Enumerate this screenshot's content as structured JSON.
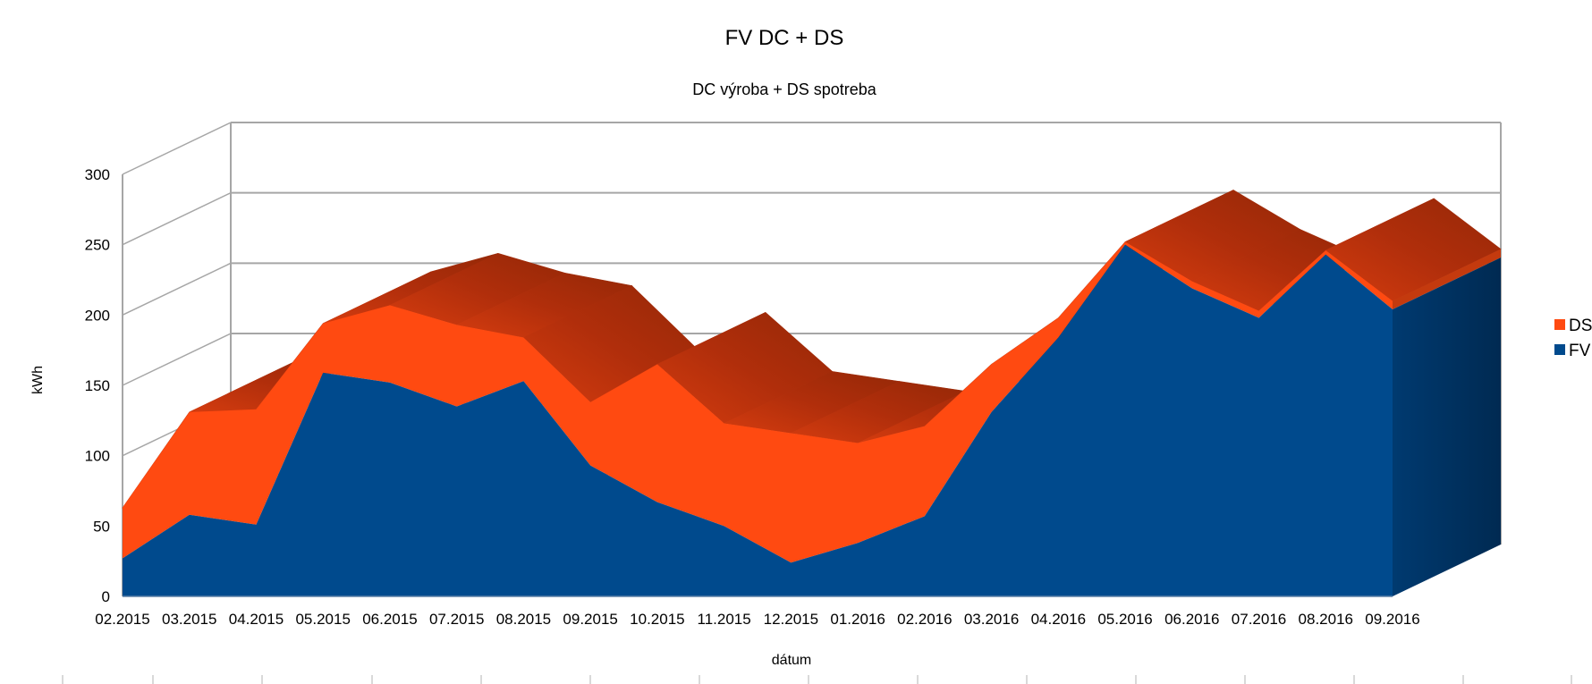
{
  "chart_data": {
    "type": "area",
    "variant": "3d-stacked-area",
    "title": "FV DC + DS",
    "subtitle": "DC výroba + DS spotreba",
    "xlabel": "dátum",
    "ylabel": "kWh",
    "ylim": [
      0,
      300
    ],
    "yticks": [
      0,
      50,
      100,
      150,
      200,
      250,
      300
    ],
    "grid": true,
    "legend_position": "right",
    "categories": [
      "02.2015",
      "03.2015",
      "04.2015",
      "05.2015",
      "06.2015",
      "07.2015",
      "08.2015",
      "09.2015",
      "10.2015",
      "11.2015",
      "12.2015",
      "01.2016",
      "02.2016",
      "03.2016",
      "04.2016",
      "05.2016",
      "06.2016",
      "07.2016",
      "08.2016",
      "09.2016"
    ],
    "series": [
      {
        "name": "FV",
        "color": "#004A8D",
        "values": [
          27,
          58,
          51,
          159,
          152,
          135,
          153,
          93,
          67,
          50,
          24,
          38,
          57,
          131,
          184,
          250,
          219,
          198,
          243,
          204
        ]
      },
      {
        "name": "DS",
        "color": "#FF4A11",
        "values": [
          36,
          73,
          82,
          35,
          55,
          58,
          31,
          45,
          98,
          73,
          92,
          71,
          64,
          34,
          14,
          2,
          5,
          5,
          3,
          6
        ]
      }
    ],
    "legend": [
      {
        "label": "DS",
        "color": "#FF4A11"
      },
      {
        "label": "FV",
        "color": "#004A8D"
      }
    ]
  }
}
